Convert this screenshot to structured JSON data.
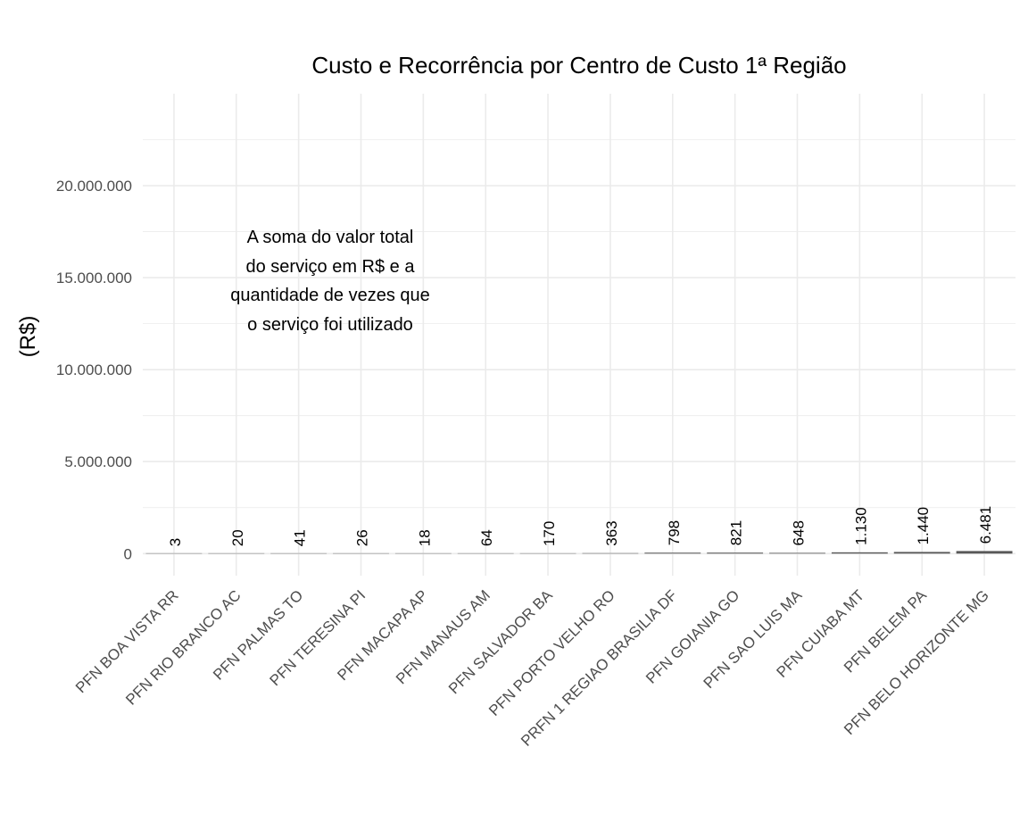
{
  "chart_data": {
    "type": "bar",
    "title": "Custo e Recorrência por Centro de Custo 1ª Região",
    "xlabel": "",
    "ylabel": "(R$)",
    "ylim": [
      -1200000,
      25000000
    ],
    "y_ticks": [
      0,
      5000000,
      10000000,
      15000000,
      20000000
    ],
    "y_tick_labels": [
      "0",
      "5.000.000",
      "10.000.000",
      "15.000.000",
      "20.000.000"
    ],
    "grid": true,
    "categories": [
      "PFN BOA VISTA RR",
      "PFN RIO BRANCO AC",
      "PFN PALMAS TO",
      "PFN TERESINA PI",
      "PFN MACAPA AP",
      "PFN MANAUS AM",
      "PFN SALVADOR BA",
      "PFN PORTO VELHO RO",
      "PRFN 1 REGIAO BRASILIA DF",
      "PFN GOIANIA GO",
      "PFN SAO LUIS MA",
      "PFN CUIABA MT",
      "PFN BELEM PA",
      "PFN BELO HORIZONTE MG"
    ],
    "values": [
      200,
      1500,
      3000,
      2000,
      1500,
      5000,
      12000,
      25000,
      50000,
      52000,
      40000,
      70000,
      90000,
      140000
    ],
    "data_labels": [
      "3",
      "20",
      "41",
      "26",
      "18",
      "64",
      "170",
      "363",
      "798",
      "821",
      "648",
      "1.130",
      "1.440",
      "6.481"
    ],
    "annotation": [
      "A soma do valor total",
      "do serviço em R$ e a",
      "quantidade de vezes que",
      "o serviço foi utilizado"
    ],
    "colors": {
      "bar": "#595959",
      "grid": "#ebebeb",
      "tick_text": "#4d4d4d",
      "label_text": "#000000"
    }
  }
}
